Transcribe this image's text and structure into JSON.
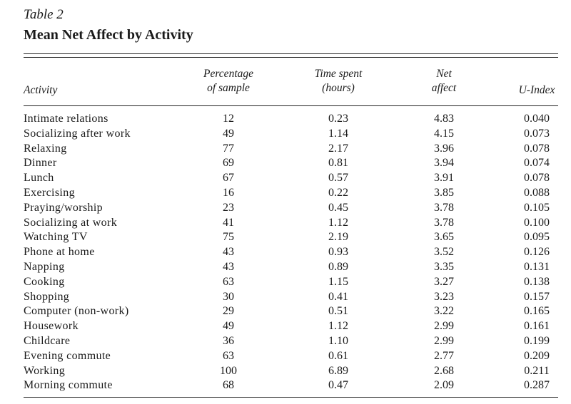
{
  "table_label": "Table 2",
  "title": "Mean Net Affect by Activity",
  "headers": {
    "activity": "Activity",
    "pct_line1": "Percentage",
    "pct_line2": "of sample",
    "time_line1": "Time spent",
    "time_line2": "(hours)",
    "net_line1": "Net",
    "net_line2": "affect",
    "uindex": "U-Index"
  },
  "rows": [
    {
      "activity": "Intimate relations",
      "pct": "12",
      "time": "0.23",
      "net": "4.83",
      "u": "0.040"
    },
    {
      "activity": "Socializing after work",
      "pct": "49",
      "time": "1.14",
      "net": "4.15",
      "u": "0.073"
    },
    {
      "activity": "Relaxing",
      "pct": "77",
      "time": "2.17",
      "net": "3.96",
      "u": "0.078"
    },
    {
      "activity": "Dinner",
      "pct": "69",
      "time": "0.81",
      "net": "3.94",
      "u": "0.074"
    },
    {
      "activity": "Lunch",
      "pct": "67",
      "time": "0.57",
      "net": "3.91",
      "u": "0.078"
    },
    {
      "activity": "Exercising",
      "pct": "16",
      "time": "0.22",
      "net": "3.85",
      "u": "0.088"
    },
    {
      "activity": "Praying/worship",
      "pct": "23",
      "time": "0.45",
      "net": "3.78",
      "u": "0.105"
    },
    {
      "activity": "Socializing at work",
      "pct": "41",
      "time": "1.12",
      "net": "3.78",
      "u": "0.100"
    },
    {
      "activity": "Watching TV",
      "pct": "75",
      "time": "2.19",
      "net": "3.65",
      "u": "0.095"
    },
    {
      "activity": "Phone at home",
      "pct": "43",
      "time": "0.93",
      "net": "3.52",
      "u": "0.126"
    },
    {
      "activity": "Napping",
      "pct": "43",
      "time": "0.89",
      "net": "3.35",
      "u": "0.131"
    },
    {
      "activity": "Cooking",
      "pct": "63",
      "time": "1.15",
      "net": "3.27",
      "u": "0.138"
    },
    {
      "activity": "Shopping",
      "pct": "30",
      "time": "0.41",
      "net": "3.23",
      "u": "0.157"
    },
    {
      "activity": "Computer (non-work)",
      "pct": "29",
      "time": "0.51",
      "net": "3.22",
      "u": "0.165"
    },
    {
      "activity": "Housework",
      "pct": "49",
      "time": "1.12",
      "net": "2.99",
      "u": "0.161"
    },
    {
      "activity": "Childcare",
      "pct": "36",
      "time": "1.10",
      "net": "2.99",
      "u": "0.199"
    },
    {
      "activity": "Evening commute",
      "pct": "63",
      "time": "0.61",
      "net": "2.77",
      "u": "0.209"
    },
    {
      "activity": "Working",
      "pct": "100",
      "time": "6.89",
      "net": "2.68",
      "u": "0.211"
    },
    {
      "activity": "Morning commute",
      "pct": "68",
      "time": "0.47",
      "net": "2.09",
      "u": "0.287"
    }
  ]
}
